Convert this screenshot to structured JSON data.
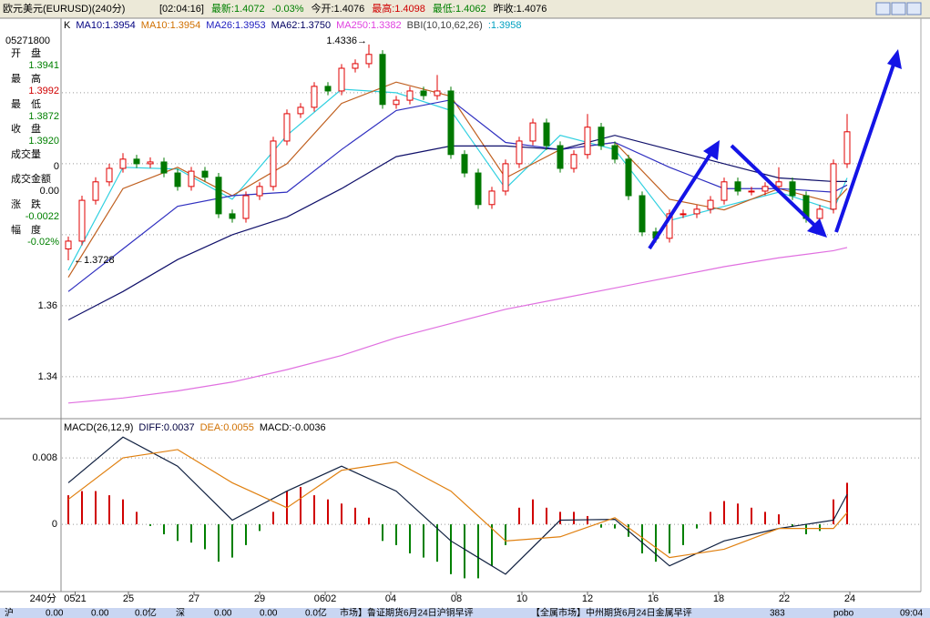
{
  "header": {
    "title": "欧元美元(EURUSD)(240分)",
    "items": [
      {
        "text": "[02:04:16]",
        "color": "#000000"
      },
      {
        "text": "最新:1.4072",
        "color": "#008000"
      },
      {
        "text": "-0.03%",
        "color": "#008000"
      },
      {
        "text": "今开:1.4076",
        "color": "#000000"
      },
      {
        "text": "最高:1.4098",
        "color": "#d00000"
      },
      {
        "text": "最低:1.4062",
        "color": "#008000"
      },
      {
        "text": "昨收:1.4076",
        "color": "#000000"
      }
    ]
  },
  "info_panel": {
    "time": "05271800",
    "rows": [
      {
        "label": "开　盘",
        "value": "1.3941",
        "color": "#008000"
      },
      {
        "label": "最　高",
        "value": "1.3992",
        "color": "#d00000"
      },
      {
        "label": "最　低",
        "value": "1.3872",
        "color": "#008000"
      },
      {
        "label": "收　盘",
        "value": "1.3920",
        "color": "#008000"
      },
      {
        "label": "成交量",
        "value": "0",
        "color": "#000000"
      },
      {
        "label": "成交金额",
        "value": "0.00",
        "color": "#000000"
      },
      {
        "label": "涨　跌",
        "value": "-0.0022",
        "color": "#008000"
      },
      {
        "label": "幅　度",
        "value": "-0.02%",
        "color": "#008000"
      }
    ]
  },
  "chart_data": [
    {
      "type": "candlestick",
      "legend": [
        {
          "text": "K",
          "color": "#000000"
        },
        {
          "text": "MA10:1.3954",
          "color": "#000080"
        },
        {
          "text": "MA10:1.3954",
          "color": "#d07000"
        },
        {
          "text": "MA26:1.3953",
          "color": "#2020c0"
        },
        {
          "text": "MA62:1.3750",
          "color": "#000060"
        },
        {
          "text": "MA250:1.3382",
          "color": "#e040e0"
        },
        {
          "text": "BBI(10,10,62,26)",
          "color": "#404040"
        },
        {
          "text": ":1.3958",
          "color": "#00a0c0"
        }
      ],
      "ylim": [
        1.3287,
        1.441
      ],
      "yticks": [
        1.34,
        1.36
      ],
      "minor_grid": [
        1.38,
        1.4,
        1.42
      ],
      "open": [
        1.376,
        1.3782,
        1.3897,
        1.3949,
        1.3987,
        1.4013,
        1.4,
        1.4005,
        1.3974,
        1.3936,
        1.3979,
        1.3962,
        1.3859,
        1.3846,
        1.391,
        1.3936,
        1.4064,
        1.4141,
        1.4159,
        1.4218,
        1.4205,
        1.4269,
        1.4282,
        1.4308,
        1.4167,
        1.4179,
        1.4205,
        1.4192,
        1.4205,
        1.4026,
        1.3974,
        1.3885,
        1.3923,
        1.4,
        1.4064,
        1.4115,
        1.4051,
        1.3987,
        1.4026,
        1.4103,
        1.4051,
        1.4013,
        1.391,
        1.3808,
        1.379,
        1.3859,
        1.3859,
        1.3872,
        1.3897,
        1.3949,
        1.3923,
        1.3923,
        1.3936,
        1.3949,
        1.391,
        1.3846,
        1.3872,
        1.4
      ],
      "high": [
        1.3795,
        1.391,
        1.3962,
        1.4,
        1.403,
        1.4025,
        1.4018,
        1.4017,
        1.3986,
        1.3991,
        1.3991,
        1.3974,
        1.3871,
        1.3922,
        1.3948,
        1.4076,
        1.4153,
        1.4171,
        1.423,
        1.423,
        1.4281,
        1.4294,
        1.4336,
        1.432,
        1.4191,
        1.4217,
        1.4217,
        1.425,
        1.4217,
        1.4038,
        1.3986,
        1.3935,
        1.4012,
        1.4076,
        1.4127,
        1.4127,
        1.4063,
        1.4038,
        1.414,
        1.4115,
        1.4063,
        1.4025,
        1.3922,
        1.382,
        1.3871,
        1.3871,
        1.3884,
        1.3909,
        1.3961,
        1.3961,
        1.3935,
        1.3948,
        1.399,
        1.3961,
        1.3922,
        1.3884,
        1.4012,
        1.414
      ],
      "low": [
        1.3728,
        1.377,
        1.3885,
        1.3937,
        1.3975,
        1.3988,
        1.3988,
        1.3962,
        1.3924,
        1.3924,
        1.395,
        1.3847,
        1.3834,
        1.3834,
        1.3898,
        1.3924,
        1.4052,
        1.4129,
        1.4147,
        1.4193,
        1.4193,
        1.4257,
        1.427,
        1.4155,
        1.4155,
        1.4167,
        1.418,
        1.418,
        1.4014,
        1.3962,
        1.3873,
        1.3873,
        1.3911,
        1.3988,
        1.4052,
        1.4039,
        1.3975,
        1.3975,
        1.4014,
        1.4039,
        1.4001,
        1.3898,
        1.3796,
        1.3778,
        1.3778,
        1.3847,
        1.3847,
        1.386,
        1.3885,
        1.3911,
        1.3911,
        1.3911,
        1.3924,
        1.3898,
        1.3834,
        1.3834,
        1.386,
        1.3988
      ],
      "close": [
        1.3782,
        1.3897,
        1.3949,
        1.3987,
        1.4013,
        1.4,
        1.4005,
        1.3974,
        1.3936,
        1.3979,
        1.3962,
        1.3859,
        1.3846,
        1.391,
        1.3936,
        1.4064,
        1.4141,
        1.4159,
        1.4218,
        1.4205,
        1.4269,
        1.4282,
        1.4308,
        1.4167,
        1.4179,
        1.4205,
        1.4192,
        1.4205,
        1.4026,
        1.3974,
        1.3885,
        1.3923,
        1.4,
        1.4064,
        1.4115,
        1.4051,
        1.3987,
        1.4026,
        1.4103,
        1.4051,
        1.4013,
        1.391,
        1.3808,
        1.379,
        1.3859,
        1.3859,
        1.3872,
        1.3897,
        1.3949,
        1.3923,
        1.3923,
        1.3936,
        1.3949,
        1.391,
        1.3846,
        1.3872,
        1.4,
        1.409
      ],
      "up_color": "#e00000",
      "down_color": "#007800",
      "line_x": [
        0,
        4,
        8,
        12,
        16,
        20,
        24,
        28,
        32,
        36,
        40,
        44,
        48,
        52,
        56,
        57
      ],
      "series": [
        {
          "color": "#30d0e0",
          "values": [
            1.37,
            1.399,
            1.3985,
            1.39,
            1.408,
            1.421,
            1.42,
            1.415,
            1.393,
            1.408,
            1.404,
            1.384,
            1.388,
            1.392,
            1.387,
            1.396
          ]
        },
        {
          "color": "#c06020",
          "values": [
            1.368,
            1.393,
            1.399,
            1.391,
            1.4,
            1.417,
            1.423,
            1.419,
            1.396,
            1.404,
            1.406,
            1.39,
            1.387,
            1.393,
            1.389,
            1.393
          ]
        },
        {
          "color": "#3030c0",
          "values": [
            1.364,
            1.376,
            1.388,
            1.391,
            1.392,
            1.404,
            1.415,
            1.418,
            1.406,
            1.404,
            1.406,
            1.399,
            1.393,
            1.393,
            1.392,
            1.394
          ]
        },
        {
          "color": "#10106a",
          "values": [
            1.356,
            1.364,
            1.373,
            1.38,
            1.385,
            1.393,
            1.402,
            1.405,
            1.405,
            1.404,
            1.408,
            1.404,
            1.4,
            1.396,
            1.395,
            1.395
          ]
        },
        {
          "color": "#e070e0",
          "values": [
            1.3326,
            1.334,
            1.336,
            1.3385,
            1.342,
            1.346,
            1.351,
            1.355,
            1.359,
            1.362,
            1.365,
            1.368,
            1.371,
            1.3735,
            1.3755,
            1.3764
          ]
        }
      ],
      "annotations": [
        {
          "index": 22,
          "value": 1.4336,
          "label": "1.4336→"
        },
        {
          "index": 0,
          "value": 1.3728,
          "label": "←1.3728"
        }
      ]
    },
    {
      "type": "macd",
      "legend": [
        {
          "text": "MACD(26,12,9)",
          "color": "#000000"
        },
        {
          "text": "DIFF:0.0037",
          "color": "#000040"
        },
        {
          "text": "DEA:0.0055",
          "color": "#d07000"
        },
        {
          "text": "MACD:-0.0036",
          "color": "#000000"
        }
      ],
      "ylim": [
        -0.0081,
        0.0125
      ],
      "yticks": [
        0,
        0.008
      ],
      "values": [
        0.0035,
        0.004,
        0.004,
        0.0035,
        0.003,
        0.0015,
        -0.0002,
        -0.0012,
        -0.002,
        -0.0022,
        -0.003,
        -0.0045,
        -0.004,
        -0.0025,
        -0.0008,
        0.0015,
        0.004,
        0.0045,
        0.0035,
        0.003,
        0.0025,
        0.002,
        0.0008,
        -0.002,
        -0.0025,
        -0.0035,
        -0.004,
        -0.0045,
        -0.006,
        -0.0065,
        -0.0065,
        -0.005,
        -0.0025,
        0.002,
        0.003,
        0.002,
        0.0015,
        0.0015,
        0.001,
        -0.0004,
        -0.0005,
        -0.0015,
        -0.0035,
        -0.0045,
        -0.0035,
        -0.0025,
        -0.0005,
        0.0015,
        0.0028,
        0.0025,
        0.002,
        0.0015,
        0.0012,
        -0.0003,
        -0.0012,
        -0.0008,
        0.003,
        0.005
      ],
      "up_color": "#d00000",
      "down_color": "#008000",
      "line_x": [
        0,
        4,
        8,
        12,
        16,
        20,
        24,
        28,
        32,
        36,
        40,
        44,
        48,
        52,
        56,
        57
      ],
      "series": [
        {
          "color": "#102040",
          "values": [
            0.005,
            0.0105,
            0.007,
            0.0005,
            0.004,
            0.007,
            0.004,
            -0.002,
            -0.006,
            0.0005,
            0.0006,
            -0.005,
            -0.002,
            -0.0005,
            0.0005,
            0.0036
          ]
        },
        {
          "color": "#e08010",
          "values": [
            0.003,
            0.008,
            0.009,
            0.005,
            0.002,
            0.0065,
            0.0075,
            0.004,
            -0.002,
            -0.0015,
            0.0008,
            -0.004,
            -0.003,
            -0.0005,
            -0.0005,
            0.0014
          ]
        }
      ],
      "period_label": "240分",
      "xticks": [
        {
          "value": 0.5,
          "label": "0521"
        },
        {
          "value": 4.4,
          "label": "25"
        },
        {
          "value": 9.2,
          "label": "27"
        },
        {
          "value": 14,
          "label": "29"
        },
        {
          "value": 18.8,
          "label": "0602"
        },
        {
          "value": 23.6,
          "label": "04"
        },
        {
          "value": 28.4,
          "label": "08"
        },
        {
          "value": 33.2,
          "label": "10"
        },
        {
          "value": 38,
          "label": "12"
        },
        {
          "value": 42.8,
          "label": "16"
        },
        {
          "value": 47.6,
          "label": "18"
        },
        {
          "value": 52.4,
          "label": "22"
        },
        {
          "value": 57.2,
          "label": "24"
        }
      ]
    }
  ],
  "status_bar": {
    "items": [
      "沪",
      "0.00",
      "0.00",
      "0.0亿",
      "深",
      "0.00",
      "0.00",
      "0.0亿",
      "市场】鲁证期货6月24日沪铜早评",
      "【全属市场】中州期货6月24日金属早评",
      "383",
      "pobo",
      "09:04"
    ]
  }
}
